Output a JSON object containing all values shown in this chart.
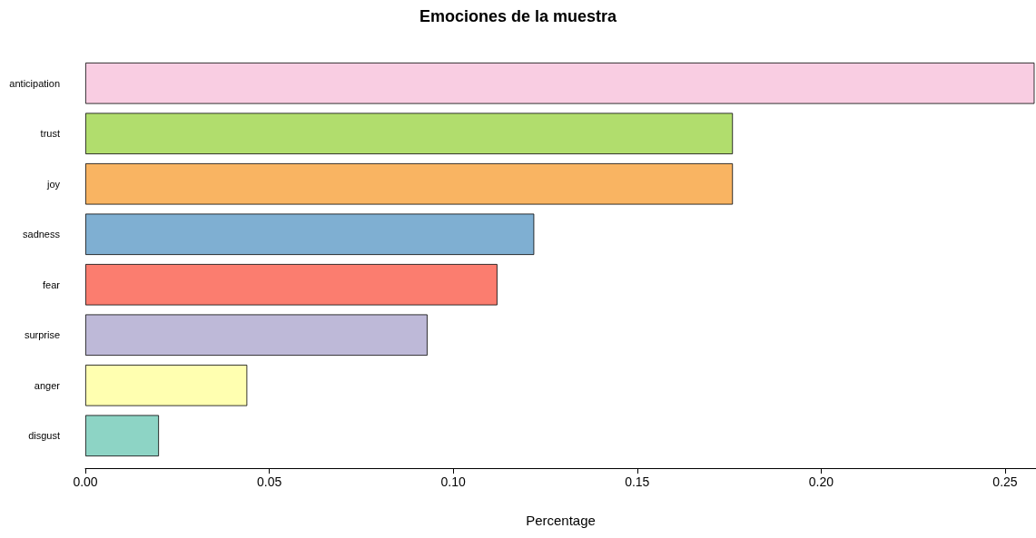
{
  "chart_data": {
    "type": "bar",
    "orientation": "horizontal",
    "title": "Emociones de la muestra",
    "xlabel": "Percentage",
    "categories": [
      "anticipation",
      "trust",
      "joy",
      "sadness",
      "fear",
      "surprise",
      "anger",
      "disgust"
    ],
    "values": [
      0.258,
      0.176,
      0.176,
      0.122,
      0.112,
      0.093,
      0.044,
      0.02
    ],
    "colors": [
      "#f9cde2",
      "#b1dd6d",
      "#f9b462",
      "#7fafd2",
      "#fb7d6f",
      "#beb9d8",
      "#ffffb0",
      "#8dd4c5"
    ],
    "xlim": [
      0,
      0.2584
    ],
    "xticks": [
      {
        "value": 0,
        "label": "0.00"
      },
      {
        "value": 0.05,
        "label": "0.05"
      },
      {
        "value": 0.1,
        "label": "0.10"
      },
      {
        "value": 0.15,
        "label": "0.15"
      },
      {
        "value": 0.2,
        "label": "0.20"
      },
      {
        "value": 0.25,
        "label": "0.25"
      }
    ],
    "grid": false
  }
}
